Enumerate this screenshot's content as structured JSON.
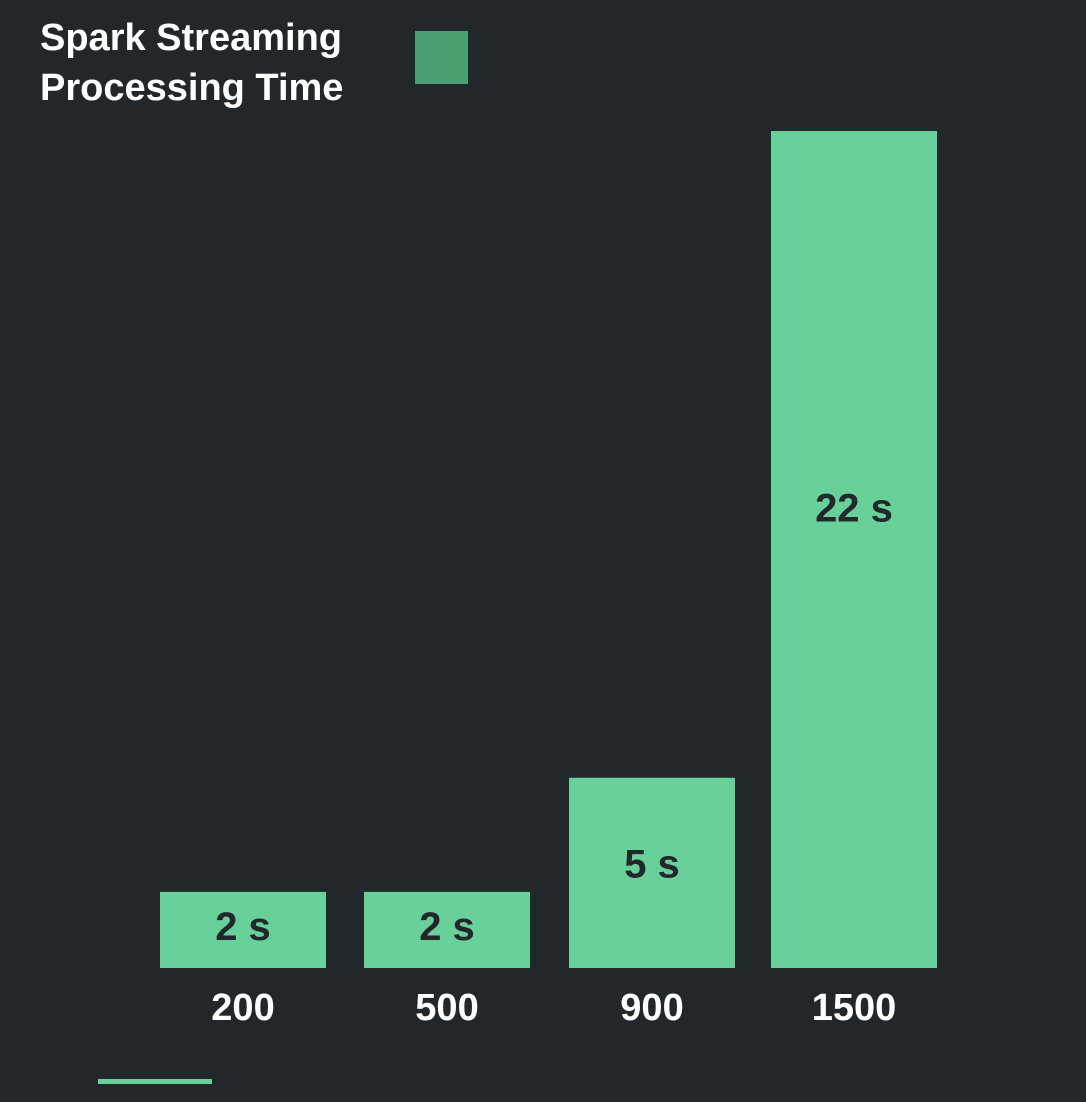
{
  "chart_data": {
    "type": "bar",
    "title": "",
    "xlabel": "",
    "ylabel": "",
    "categories": [
      "200",
      "500",
      "900",
      "1500"
    ],
    "series": [
      {
        "name": "Spark Streaming Processing Time",
        "values": [
          2,
          2,
          5,
          22
        ],
        "labels": [
          "2 s",
          "2 s",
          "5 s",
          "22 s"
        ]
      }
    ],
    "ylim": [
      0,
      22
    ],
    "grid": false,
    "legend_position": "top-left"
  },
  "legend": {
    "line1": "Spark Streaming",
    "line2": "Processing Time"
  },
  "colors": {
    "background": "#21272a",
    "bar": "#68d19a",
    "legend_swatch": "#4a9f72",
    "bar_label": "#21272a",
    "text": "#ffffff",
    "accent_line": "#68d19a"
  }
}
